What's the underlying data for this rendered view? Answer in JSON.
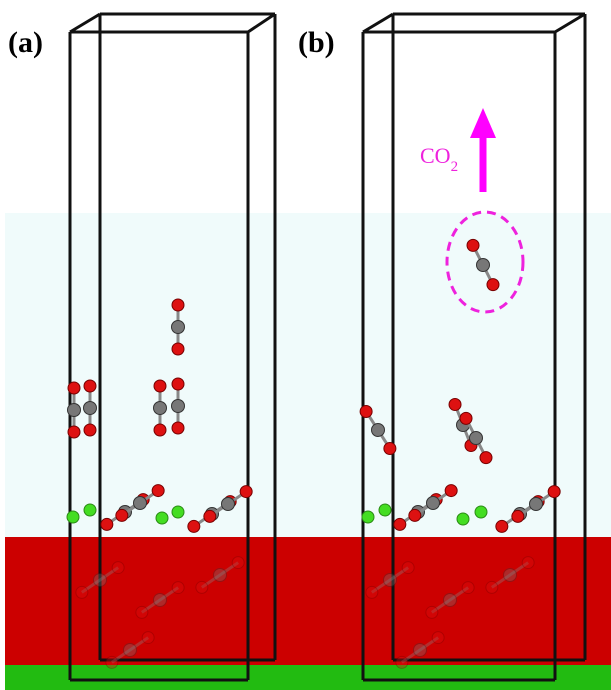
{
  "panels": [
    {
      "label": "(a)"
    },
    {
      "label": "(b)"
    }
  ],
  "annotation": {
    "text": "CO",
    "subscript": "2"
  }
}
